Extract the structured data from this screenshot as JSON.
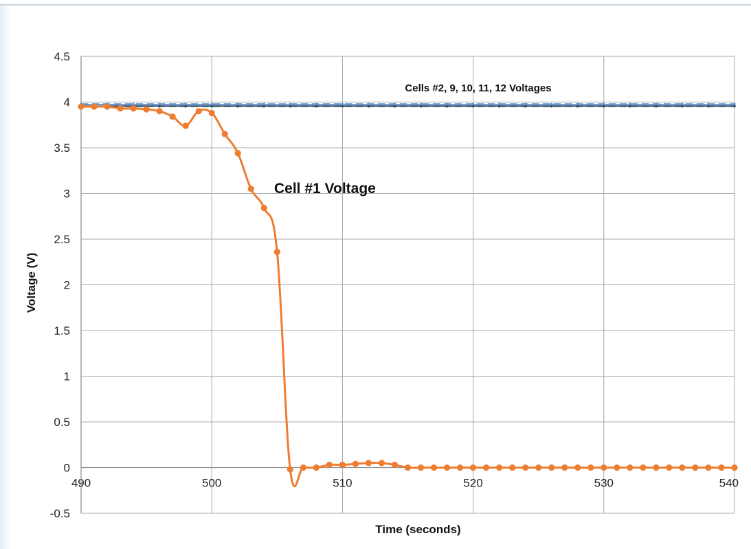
{
  "chart_data": {
    "type": "line",
    "title": "",
    "xlabel": "Time (seconds)",
    "ylabel": "Voltage (V)",
    "xlim": [
      490,
      540
    ],
    "ylim": [
      -0.5,
      4.5
    ],
    "x_ticks": [
      "490",
      "500",
      "510",
      "520",
      "530",
      "540"
    ],
    "y_ticks": [
      "4.5",
      "4",
      "3.5",
      "3",
      "2.5",
      "2",
      "1.5",
      "1",
      "0.5",
      "0",
      "-0.5"
    ],
    "grid": true,
    "legend": "none",
    "annotations": [
      "Cells #2, 9, 10, 11, 12 Voltages",
      "Cell #1 Voltage"
    ],
    "series": [
      {
        "color": "#ed7d31",
        "x": [
          490,
          491,
          492,
          493,
          494,
          495,
          496,
          497,
          498,
          499,
          500,
          501,
          502,
          503,
          504,
          505,
          506,
          507,
          508,
          509,
          510,
          511,
          512,
          513,
          514,
          515,
          516,
          517,
          518,
          519,
          520,
          521,
          522,
          523,
          524,
          525,
          526,
          527,
          528,
          529,
          530,
          531,
          532,
          533,
          534,
          535,
          536,
          537,
          538,
          539,
          540
        ],
        "values": [
          3.95,
          3.95,
          3.95,
          3.93,
          3.93,
          3.92,
          3.9,
          3.84,
          3.74,
          3.9,
          3.88,
          3.65,
          3.44,
          3.05,
          2.84,
          2.36,
          -0.02,
          0.0,
          0.0,
          0.03,
          0.03,
          0.04,
          0.05,
          0.05,
          0.03,
          0.0,
          0.0,
          0.0,
          0.0,
          0.0,
          0.0,
          0.0,
          0.0,
          0.0,
          0.0,
          0.0,
          0.0,
          0.0,
          0.0,
          0.0,
          0.0,
          0.0,
          0.0,
          0.0,
          0.0,
          0.0,
          0.0,
          0.0,
          0.0,
          0.0,
          0.0
        ]
      },
      {
        "color": "#4472c4",
        "x": [
          490,
          540
        ],
        "values": [
          3.97,
          3.97
        ]
      },
      {
        "color": "#70ad47",
        "x": [
          490,
          540
        ],
        "values": [
          3.95,
          3.95
        ]
      },
      {
        "color": "#a5a5a5",
        "x": [
          490,
          540
        ],
        "values": [
          3.96,
          3.96
        ]
      },
      {
        "color": "#5b9bd5",
        "x": [
          490,
          540
        ],
        "values": [
          3.98,
          3.98
        ]
      },
      {
        "color": "#264478",
        "x": [
          490,
          540
        ],
        "values": [
          3.955,
          3.955
        ]
      }
    ]
  }
}
